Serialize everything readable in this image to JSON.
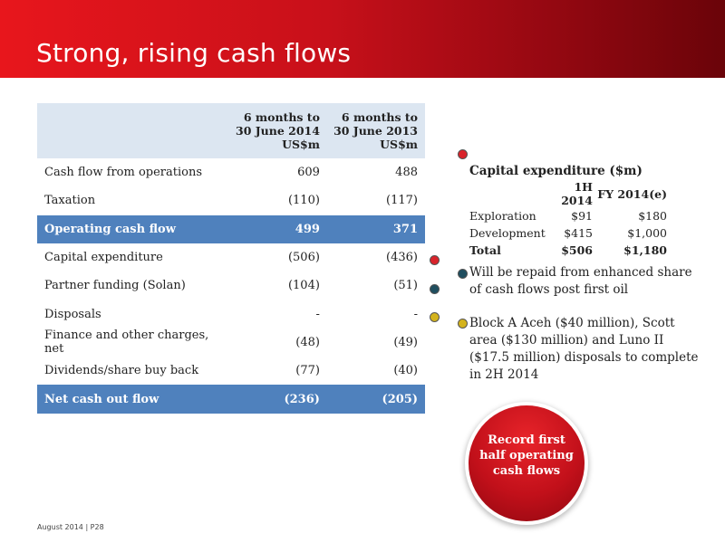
{
  "slide": {
    "title": "Strong, rising cash flows",
    "footer": "August 2014 | P28"
  },
  "table": {
    "headers": [
      "",
      [
        "6 months to",
        "30 June 2014",
        "US$m"
      ],
      [
        "6 months to",
        "30 June 2013",
        "US$m"
      ]
    ],
    "rows": [
      {
        "label": "Cash flow from operations",
        "h1_2014": "609",
        "h1_2013": "488",
        "highlight": false
      },
      {
        "label": "Taxation",
        "h1_2014": "(110)",
        "h1_2013": "(117)",
        "highlight": false
      },
      {
        "label": "Operating cash flow",
        "h1_2014": "499",
        "h1_2013": "371",
        "highlight": true
      },
      {
        "label": "Capital expenditure",
        "h1_2014": "(506)",
        "h1_2013": "(436)",
        "highlight": false
      },
      {
        "label": "Partner funding (Solan)",
        "h1_2014": "(104)",
        "h1_2013": "(51)",
        "highlight": false
      },
      {
        "label": "Disposals",
        "h1_2014": "-",
        "h1_2013": "-",
        "highlight": false
      },
      {
        "label": "Finance and other charges, net",
        "h1_2014": "(48)",
        "h1_2013": "(49)",
        "highlight": false
      },
      {
        "label": "Dividends/share buy back",
        "h1_2014": "(77)",
        "h1_2013": "(40)",
        "highlight": false
      },
      {
        "label": "Net cash out flow",
        "h1_2014": "(236)",
        "h1_2013": "(205)",
        "highlight": true
      }
    ]
  },
  "capex": {
    "title": "Capital expenditure ($m)",
    "col_1h": "1H 2014",
    "col_fy": "FY 2014(e)",
    "rows": [
      {
        "label": "Exploration",
        "h1": "$91",
        "fy": "$180",
        "bold": false
      },
      {
        "label": "Development",
        "h1": "$415",
        "fy": "$1,000",
        "bold": false
      },
      {
        "label": "Total",
        "h1": "$506",
        "fy": "$1,180",
        "bold": true
      }
    ]
  },
  "bullets": {
    "partner": "Will be repaid from enhanced share of cash flows post first oil",
    "disposals": "Block A Aceh ($40 million), Scott area ($130 million) and Luno II ($17.5 million) disposals to complete in 2H 2014"
  },
  "callout": {
    "line1": "Record first",
    "line2": "half operating",
    "line3": "cash flows"
  },
  "colors": {
    "red_dot": "#d9232b",
    "navy_dot": "#1f4e5f",
    "yellow_dot": "#d4b31c",
    "row_highlight": "#4f81bd",
    "header_fill": "#dce6f1"
  }
}
